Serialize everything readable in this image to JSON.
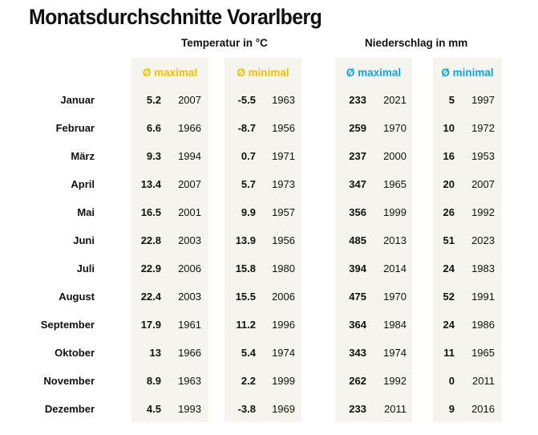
{
  "title": "Monatsdurchschnitte Vorarlberg",
  "groups": {
    "temperature": "Temperatur in °C",
    "precipitation": "Niederschlag in mm"
  },
  "columns": [
    {
      "label": "Ø maximal",
      "color": "#f2c200"
    },
    {
      "label": "Ø minimal",
      "color": "#f2c200"
    },
    {
      "label": "Ø maximal",
      "color": "#1aa0d8"
    },
    {
      "label": "Ø minimal",
      "color": "#1aa0d8"
    }
  ],
  "rows": [
    {
      "month": "Januar",
      "cells": [
        [
          "5.2",
          "2007"
        ],
        [
          "-5.5",
          "1963"
        ],
        [
          "233",
          "2021"
        ],
        [
          "5",
          "1997"
        ]
      ]
    },
    {
      "month": "Februar",
      "cells": [
        [
          "6.6",
          "1966"
        ],
        [
          "-8.7",
          "1956"
        ],
        [
          "259",
          "1970"
        ],
        [
          "10",
          "1972"
        ]
      ]
    },
    {
      "month": "März",
      "cells": [
        [
          "9.3",
          "1994"
        ],
        [
          "0.7",
          "1971"
        ],
        [
          "237",
          "2000"
        ],
        [
          "16",
          "1953"
        ]
      ]
    },
    {
      "month": "April",
      "cells": [
        [
          "13.4",
          "2007"
        ],
        [
          "5.7",
          "1973"
        ],
        [
          "347",
          "1965"
        ],
        [
          "20",
          "2007"
        ]
      ]
    },
    {
      "month": "Mai",
      "cells": [
        [
          "16.5",
          "2001"
        ],
        [
          "9.9",
          "1957"
        ],
        [
          "356",
          "1999"
        ],
        [
          "26",
          "1992"
        ]
      ]
    },
    {
      "month": "Juni",
      "cells": [
        [
          "22.8",
          "2003"
        ],
        [
          "13.9",
          "1956"
        ],
        [
          "485",
          "2013"
        ],
        [
          "51",
          "2023"
        ]
      ]
    },
    {
      "month": "Juli",
      "cells": [
        [
          "22.9",
          "2006"
        ],
        [
          "15.8",
          "1980"
        ],
        [
          "394",
          "2014"
        ],
        [
          "24",
          "1983"
        ]
      ]
    },
    {
      "month": "August",
      "cells": [
        [
          "22.4",
          "2003"
        ],
        [
          "15.5",
          "2006"
        ],
        [
          "475",
          "1970"
        ],
        [
          "52",
          "1991"
        ]
      ]
    },
    {
      "month": "September",
      "cells": [
        [
          "17.9",
          "1961"
        ],
        [
          "11.2",
          "1996"
        ],
        [
          "364",
          "1984"
        ],
        [
          "24",
          "1986"
        ]
      ]
    },
    {
      "month": "Oktober",
      "cells": [
        [
          "13",
          "1966"
        ],
        [
          "5.4",
          "1974"
        ],
        [
          "343",
          "1974"
        ],
        [
          "11",
          "1965"
        ]
      ]
    },
    {
      "month": "November",
      "cells": [
        [
          "8.9",
          "1963"
        ],
        [
          "2.2",
          "1999"
        ],
        [
          "262",
          "1992"
        ],
        [
          "0",
          "2011"
        ]
      ]
    },
    {
      "month": "Dezember",
      "cells": [
        [
          "4.5",
          "1993"
        ],
        [
          "-3.8",
          "1969"
        ],
        [
          "233",
          "2011"
        ],
        [
          "9",
          "2016"
        ]
      ]
    }
  ]
}
